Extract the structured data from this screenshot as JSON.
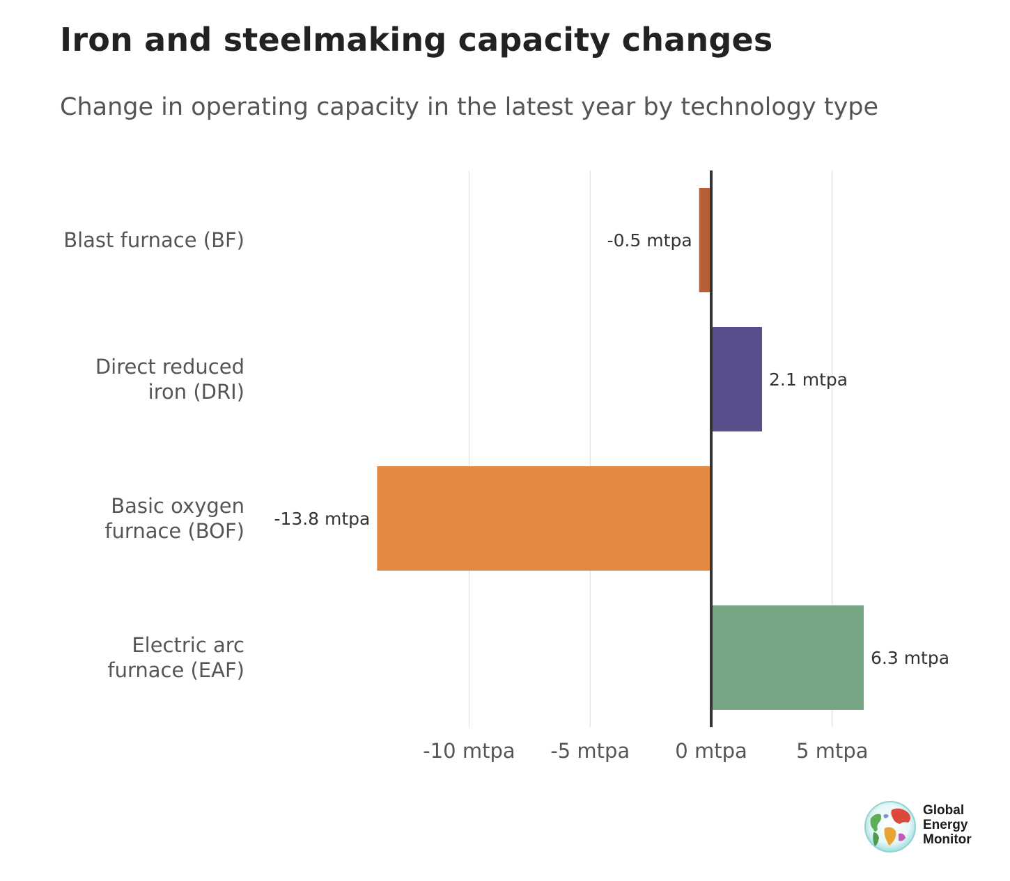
{
  "header": {
    "title": "Iron and steelmaking capacity changes",
    "subtitle": "Change in operating capacity in the latest year by technology type"
  },
  "chart_data": {
    "type": "bar",
    "orientation": "horizontal",
    "title": "Iron and steelmaking capacity changes",
    "subtitle": "Change in operating capacity in the latest year by technology type",
    "categories": [
      [
        "Blast furnace (BF)"
      ],
      [
        "Direct reduced",
        "iron (DRI)"
      ],
      [
        "Basic oxygen",
        "furnace (BOF)"
      ],
      [
        "Electric arc",
        "furnace (EAF)"
      ]
    ],
    "values": [
      -0.5,
      2.1,
      -13.8,
      6.3
    ],
    "data_labels": [
      "-0.5 mtpa",
      "2.1 mtpa",
      "-13.8 mtpa",
      "6.3 mtpa"
    ],
    "colors": [
      "#b5603a",
      "#5a4d8c",
      "#e5883f",
      "#76a583"
    ],
    "x_ticks": [
      -10,
      -5,
      0,
      5
    ],
    "x_tick_labels": [
      "-10 mtpa",
      "-5 mtpa",
      "0 mtpa",
      "5 mtpa"
    ],
    "xlim": [
      -14.3,
      6.3
    ],
    "unit": "mtpa",
    "grid": true,
    "zero_line": true
  },
  "logo": {
    "name": "global-energy-monitor-logo",
    "lines": [
      "Global",
      "Energy",
      "Monitor"
    ]
  }
}
